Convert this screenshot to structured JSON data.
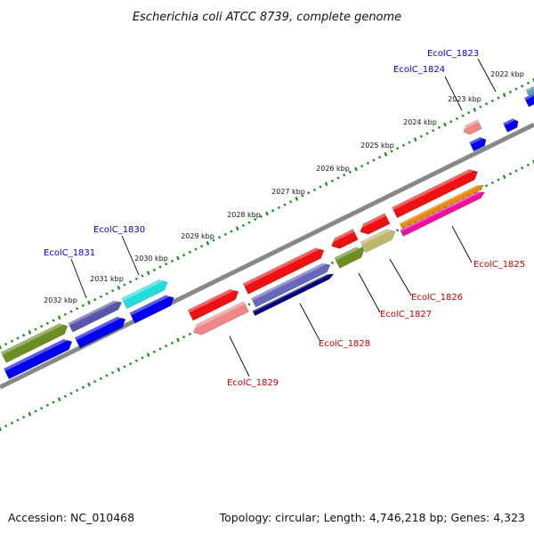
{
  "title": "Escherichia coli ATCC 8739, complete genome",
  "footer": {
    "accession": "Accession: NC_010468",
    "summary": "Topology: circular; Length: 4,746,218 bp; Genes: 4,323"
  },
  "colors": {
    "backbone": "#888888",
    "tick": "#1a8a1a",
    "label_blue": "#0000cc",
    "label_red": "#cc0000",
    "leader": "#000000"
  },
  "ticks": [
    {
      "label": "2022 kbp"
    },
    {
      "label": "2023 kbp"
    },
    {
      "label": "2024 kbp"
    },
    {
      "label": "2025 kbp"
    },
    {
      "label": "2026 kbp"
    },
    {
      "label": "2027 kbp"
    },
    {
      "label": "2028 kbp"
    },
    {
      "label": "2029 kbp"
    },
    {
      "label": "2030 kbp"
    },
    {
      "label": "2031 kbp"
    },
    {
      "label": "2032 kbp"
    }
  ],
  "gene_labels": [
    {
      "text": "EcolC_1823",
      "color": "blue"
    },
    {
      "text": "EcolC_1824",
      "color": "blue"
    },
    {
      "text": "EcolC_1830",
      "color": "blue"
    },
    {
      "text": "EcolC_1831",
      "color": "blue"
    },
    {
      "text": "EcolC_1825",
      "color": "red"
    },
    {
      "text": "EcolC_1826",
      "color": "red"
    },
    {
      "text": "EcolC_1827",
      "color": "red"
    },
    {
      "text": "EcolC_1828",
      "color": "red"
    },
    {
      "text": "EcolC_1829",
      "color": "red"
    }
  ],
  "features": [
    {
      "color": "#6b8e23"
    },
    {
      "color": "#0000ee"
    },
    {
      "color": "#5555aa"
    },
    {
      "color": "#0000ee"
    },
    {
      "color": "#22dddd"
    },
    {
      "color": "#0000ee"
    },
    {
      "color": "#ee1111"
    },
    {
      "color": "#ee8888"
    },
    {
      "color": "#ee1111"
    },
    {
      "color": "#6666bb"
    },
    {
      "color": "#000077"
    },
    {
      "color": "#6b8e23"
    },
    {
      "color": "#ee1111"
    },
    {
      "color": "#bdb76b"
    },
    {
      "color": "#ee1111"
    },
    {
      "color": "#ee1111"
    },
    {
      "color": "#ee8800"
    },
    {
      "color": "#ee1199"
    },
    {
      "color": "#ee8888"
    },
    {
      "color": "#0000ee"
    },
    {
      "color": "#0000ee"
    },
    {
      "color": "#0000ee"
    },
    {
      "color": "#6699bb"
    }
  ]
}
